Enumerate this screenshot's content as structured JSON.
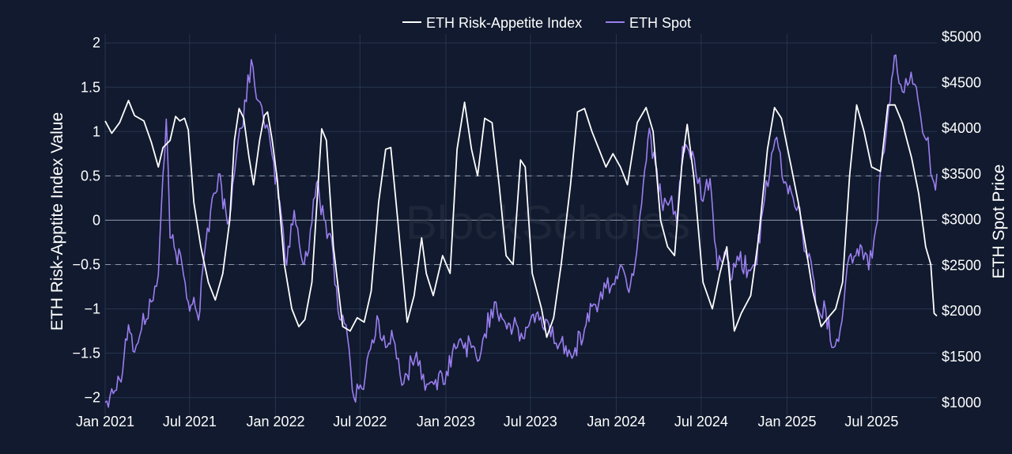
{
  "chart_data": {
    "type": "line",
    "watermark": "BlockScholes",
    "colors": {
      "background": "#111a2e",
      "grid": "#27344f",
      "index_line": "#ffffff",
      "spot_line": "#9a7ef0",
      "reference_lines": "#8f97a8"
    },
    "legend": {
      "placement": "top-center",
      "items": [
        "ETH Risk-Appetite Index",
        "ETH Spot"
      ]
    },
    "x_axis": {
      "range": [
        "2021-01-01",
        "2025-11-18"
      ],
      "tick_labels": [
        "Jan 2021",
        "Jul 2021",
        "Jan 2022",
        "Jul 2022",
        "Jan 2023",
        "Jul 2023",
        "Jan 2024",
        "Jul 2024",
        "Jan 2025",
        "Jul 2025"
      ],
      "tick_dates": [
        "2021-01-01",
        "2021-07-01",
        "2022-01-01",
        "2022-07-01",
        "2023-01-01",
        "2023-07-01",
        "2024-01-01",
        "2024-07-01",
        "2025-01-01",
        "2025-07-01"
      ]
    },
    "y_left": {
      "title": "ETH Risk-Apptite Index Value",
      "range": [
        -2.2,
        2.1
      ],
      "ticks": [
        2,
        1.5,
        1,
        0.5,
        0,
        -0.5,
        -1,
        -1.5,
        -2
      ],
      "tick_labels": [
        "2",
        "1.5",
        "1",
        "0.5",
        "0",
        "−0.5",
        "−1",
        "−1.5",
        "−2"
      ],
      "reference_lines": [
        {
          "value": 0.5,
          "style": "dashed"
        },
        {
          "value": 0,
          "style": "solid"
        },
        {
          "value": -0.5,
          "style": "dashed"
        }
      ]
    },
    "y_right": {
      "title": "ETH Spot Price",
      "range": [
        860,
        5030
      ],
      "ticks": [
        5000,
        4500,
        4000,
        3500,
        3000,
        2500,
        2000,
        1500,
        1000
      ],
      "tick_labels": [
        "$5000",
        "$4500",
        "$4000",
        "$3500",
        "$3000",
        "$2500",
        "$2000",
        "$1500",
        "$1000"
      ]
    },
    "series": [
      {
        "name": "ETH Risk-Appetite Index",
        "axis": "left",
        "points": [
          [
            "2021-01-01",
            1.12
          ],
          [
            "2021-01-15",
            0.98
          ],
          [
            "2021-02-01",
            1.1
          ],
          [
            "2021-02-20",
            1.35
          ],
          [
            "2021-03-05",
            1.18
          ],
          [
            "2021-03-25",
            1.12
          ],
          [
            "2021-04-10",
            0.88
          ],
          [
            "2021-04-25",
            0.6
          ],
          [
            "2021-05-05",
            0.82
          ],
          [
            "2021-05-20",
            0.9
          ],
          [
            "2021-06-01",
            1.17
          ],
          [
            "2021-06-10",
            1.12
          ],
          [
            "2021-06-20",
            1.15
          ],
          [
            "2021-06-28",
            1.02
          ],
          [
            "2021-07-10",
            0.2
          ],
          [
            "2021-07-25",
            -0.3
          ],
          [
            "2021-08-10",
            -0.7
          ],
          [
            "2021-08-25",
            -0.9
          ],
          [
            "2021-09-10",
            -0.6
          ],
          [
            "2021-09-25",
            0.0
          ],
          [
            "2021-10-05",
            0.9
          ],
          [
            "2021-10-15",
            1.26
          ],
          [
            "2021-10-25",
            1.15
          ],
          [
            "2021-11-05",
            0.72
          ],
          [
            "2021-11-15",
            0.4
          ],
          [
            "2021-11-28",
            0.9
          ],
          [
            "2021-12-08",
            1.18
          ],
          [
            "2021-12-15",
            1.22
          ],
          [
            "2021-12-25",
            0.9
          ],
          [
            "2022-01-05",
            0.45
          ],
          [
            "2022-01-20",
            -0.5
          ],
          [
            "2022-02-05",
            -1.0
          ],
          [
            "2022-02-20",
            -1.2
          ],
          [
            "2022-03-05",
            -1.12
          ],
          [
            "2022-03-20",
            -0.7
          ],
          [
            "2022-04-01",
            0.3
          ],
          [
            "2022-04-10",
            1.03
          ],
          [
            "2022-04-20",
            0.9
          ],
          [
            "2022-05-05",
            -0.3
          ],
          [
            "2022-05-25",
            -1.2
          ],
          [
            "2022-06-10",
            -1.25
          ],
          [
            "2022-06-25",
            -1.1
          ],
          [
            "2022-07-10",
            -1.15
          ],
          [
            "2022-07-25",
            -0.8
          ],
          [
            "2022-08-10",
            0.2
          ],
          [
            "2022-08-25",
            0.8
          ],
          [
            "2022-09-05",
            0.82
          ],
          [
            "2022-09-20",
            0.0
          ],
          [
            "2022-10-10",
            -1.15
          ],
          [
            "2022-10-25",
            -0.85
          ],
          [
            "2022-11-10",
            -0.2
          ],
          [
            "2022-11-20",
            -0.6
          ],
          [
            "2022-12-05",
            -0.85
          ],
          [
            "2022-12-25",
            -0.4
          ],
          [
            "2023-01-10",
            -0.6
          ],
          [
            "2023-01-25",
            0.8
          ],
          [
            "2023-02-10",
            1.33
          ],
          [
            "2023-02-25",
            0.8
          ],
          [
            "2023-03-10",
            0.5
          ],
          [
            "2023-03-25",
            1.15
          ],
          [
            "2023-04-10",
            1.1
          ],
          [
            "2023-04-25",
            0.4
          ],
          [
            "2023-05-10",
            -0.4
          ],
          [
            "2023-05-25",
            -0.5
          ],
          [
            "2023-06-10",
            0.68
          ],
          [
            "2023-06-20",
            0.6
          ],
          [
            "2023-07-05",
            -0.6
          ],
          [
            "2023-07-25",
            -1.0
          ],
          [
            "2023-08-05",
            -1.32
          ],
          [
            "2023-08-20",
            -1.1
          ],
          [
            "2023-09-05",
            -0.5
          ],
          [
            "2023-09-25",
            0.4
          ],
          [
            "2023-10-10",
            1.22
          ],
          [
            "2023-10-25",
            1.26
          ],
          [
            "2023-11-10",
            1.0
          ],
          [
            "2023-11-25",
            0.8
          ],
          [
            "2023-12-10",
            0.6
          ],
          [
            "2023-12-25",
            0.75
          ],
          [
            "2024-01-10",
            0.6
          ],
          [
            "2024-01-25",
            0.4
          ],
          [
            "2024-02-15",
            1.1
          ],
          [
            "2024-03-05",
            1.27
          ],
          [
            "2024-03-20",
            1.0
          ],
          [
            "2024-04-05",
            0.0
          ],
          [
            "2024-04-20",
            -0.3
          ],
          [
            "2024-05-05",
            -0.4
          ],
          [
            "2024-05-20",
            0.6
          ],
          [
            "2024-06-01",
            1.08
          ],
          [
            "2024-06-15",
            0.5
          ],
          [
            "2024-07-05",
            -0.7
          ],
          [
            "2024-07-25",
            -1.0
          ],
          [
            "2024-08-10",
            -0.6
          ],
          [
            "2024-08-25",
            -0.3
          ],
          [
            "2024-09-10",
            -1.25
          ],
          [
            "2024-09-25",
            -1.05
          ],
          [
            "2024-10-15",
            -0.85
          ],
          [
            "2024-11-01",
            -0.2
          ],
          [
            "2024-11-20",
            0.8
          ],
          [
            "2024-12-05",
            1.27
          ],
          [
            "2024-12-20",
            1.15
          ],
          [
            "2025-01-10",
            0.6
          ],
          [
            "2025-01-25",
            0.2
          ],
          [
            "2025-02-10",
            -0.3
          ],
          [
            "2025-02-25",
            -0.8
          ],
          [
            "2025-03-15",
            -1.2
          ],
          [
            "2025-03-30",
            -1.1
          ],
          [
            "2025-04-15",
            -1.0
          ],
          [
            "2025-04-30",
            -0.7
          ],
          [
            "2025-05-15",
            0.5
          ],
          [
            "2025-05-30",
            1.3
          ],
          [
            "2025-06-15",
            1.0
          ],
          [
            "2025-07-01",
            0.6
          ],
          [
            "2025-07-20",
            0.55
          ],
          [
            "2025-08-05",
            1.3
          ],
          [
            "2025-08-20",
            1.3
          ],
          [
            "2025-09-05",
            1.1
          ],
          [
            "2025-09-25",
            0.7
          ],
          [
            "2025-10-10",
            0.3
          ],
          [
            "2025-10-25",
            -0.3
          ],
          [
            "2025-11-05",
            -0.5
          ],
          [
            "2025-11-12",
            -1.05
          ],
          [
            "2025-11-18",
            -1.08
          ]
        ]
      },
      {
        "name": "ETH Spot",
        "axis": "right",
        "points": [
          [
            "2021-01-01",
            1000
          ],
          [
            "2021-01-15",
            1150
          ],
          [
            "2021-02-01",
            1250
          ],
          [
            "2021-02-20",
            1850
          ],
          [
            "2021-03-05",
            1550
          ],
          [
            "2021-03-20",
            1800
          ],
          [
            "2021-04-10",
            2100
          ],
          [
            "2021-04-25",
            2400
          ],
          [
            "2021-05-05",
            3500
          ],
          [
            "2021-05-12",
            4100
          ],
          [
            "2021-05-20",
            2800
          ],
          [
            "2021-06-01",
            2650
          ],
          [
            "2021-06-15",
            2500
          ],
          [
            "2021-06-28",
            2100
          ],
          [
            "2021-07-10",
            2150
          ],
          [
            "2021-07-20",
            1900
          ],
          [
            "2021-08-01",
            2600
          ],
          [
            "2021-08-15",
            3100
          ],
          [
            "2021-09-01",
            3500
          ],
          [
            "2021-09-20",
            2950
          ],
          [
            "2021-10-05",
            3500
          ],
          [
            "2021-10-20",
            4000
          ],
          [
            "2021-11-10",
            4750
          ],
          [
            "2021-11-25",
            4300
          ],
          [
            "2021-12-10",
            4000
          ],
          [
            "2021-12-25",
            3700
          ],
          [
            "2022-01-10",
            3200
          ],
          [
            "2022-01-25",
            2500
          ],
          [
            "2022-02-10",
            3100
          ],
          [
            "2022-02-25",
            2600
          ],
          [
            "2022-03-10",
            2600
          ],
          [
            "2022-03-30",
            3400
          ],
          [
            "2022-04-15",
            3000
          ],
          [
            "2022-05-01",
            2800
          ],
          [
            "2022-05-15",
            2000
          ],
          [
            "2022-06-01",
            1850
          ],
          [
            "2022-06-18",
            1050
          ],
          [
            "2022-07-05",
            1150
          ],
          [
            "2022-07-20",
            1550
          ],
          [
            "2022-08-10",
            1900
          ],
          [
            "2022-08-25",
            1600
          ],
          [
            "2022-09-10",
            1700
          ],
          [
            "2022-09-25",
            1300
          ],
          [
            "2022-10-10",
            1300
          ],
          [
            "2022-10-30",
            1550
          ],
          [
            "2022-11-10",
            1250
          ],
          [
            "2022-11-25",
            1200
          ],
          [
            "2022-12-10",
            1250
          ],
          [
            "2022-12-30",
            1200
          ],
          [
            "2023-01-15",
            1550
          ],
          [
            "2023-02-05",
            1650
          ],
          [
            "2023-02-25",
            1600
          ],
          [
            "2023-03-10",
            1450
          ],
          [
            "2023-03-25",
            1750
          ],
          [
            "2023-04-15",
            2100
          ],
          [
            "2023-05-05",
            1900
          ],
          [
            "2023-05-25",
            1820
          ],
          [
            "2023-06-15",
            1700
          ],
          [
            "2023-07-01",
            1900
          ],
          [
            "2023-07-20",
            1900
          ],
          [
            "2023-08-10",
            1850
          ],
          [
            "2023-08-25",
            1650
          ],
          [
            "2023-09-15",
            1620
          ],
          [
            "2023-10-05",
            1600
          ],
          [
            "2023-10-25",
            1800
          ],
          [
            "2023-11-10",
            2050
          ],
          [
            "2023-11-25",
            2100
          ],
          [
            "2023-12-10",
            2250
          ],
          [
            "2023-12-25",
            2300
          ],
          [
            "2024-01-10",
            2500
          ],
          [
            "2024-01-25",
            2250
          ],
          [
            "2024-02-10",
            2500
          ],
          [
            "2024-02-28",
            3400
          ],
          [
            "2024-03-12",
            4000
          ],
          [
            "2024-03-25",
            3600
          ],
          [
            "2024-04-10",
            3100
          ],
          [
            "2024-04-25",
            3200
          ],
          [
            "2024-05-10",
            2950
          ],
          [
            "2024-05-22",
            3800
          ],
          [
            "2024-06-05",
            3750
          ],
          [
            "2024-06-20",
            3500
          ],
          [
            "2024-07-05",
            3200
          ],
          [
            "2024-07-20",
            3450
          ],
          [
            "2024-08-05",
            2450
          ],
          [
            "2024-08-20",
            2650
          ],
          [
            "2024-09-05",
            2350
          ],
          [
            "2024-09-20",
            2550
          ],
          [
            "2024-10-10",
            2450
          ],
          [
            "2024-10-25",
            2500
          ],
          [
            "2024-11-10",
            3100
          ],
          [
            "2024-11-25",
            3500
          ],
          [
            "2024-12-10",
            3900
          ],
          [
            "2024-12-25",
            3400
          ],
          [
            "2025-01-10",
            3300
          ],
          [
            "2025-01-25",
            3150
          ],
          [
            "2025-02-10",
            2650
          ],
          [
            "2025-02-25",
            2400
          ],
          [
            "2025-03-10",
            2000
          ],
          [
            "2025-03-25",
            2000
          ],
          [
            "2025-04-10",
            1600
          ],
          [
            "2025-04-25",
            1800
          ],
          [
            "2025-05-10",
            2500
          ],
          [
            "2025-05-25",
            2600
          ],
          [
            "2025-06-10",
            2700
          ],
          [
            "2025-06-25",
            2450
          ],
          [
            "2025-07-10",
            2900
          ],
          [
            "2025-07-25",
            3700
          ],
          [
            "2025-08-10",
            4300
          ],
          [
            "2025-08-22",
            4800
          ],
          [
            "2025-09-05",
            4400
          ],
          [
            "2025-09-20",
            4500
          ],
          [
            "2025-10-05",
            4450
          ],
          [
            "2025-10-15",
            4100
          ],
          [
            "2025-10-30",
            3900
          ],
          [
            "2025-11-05",
            3500
          ],
          [
            "2025-11-12",
            3400
          ],
          [
            "2025-11-18",
            3500
          ]
        ]
      }
    ]
  }
}
